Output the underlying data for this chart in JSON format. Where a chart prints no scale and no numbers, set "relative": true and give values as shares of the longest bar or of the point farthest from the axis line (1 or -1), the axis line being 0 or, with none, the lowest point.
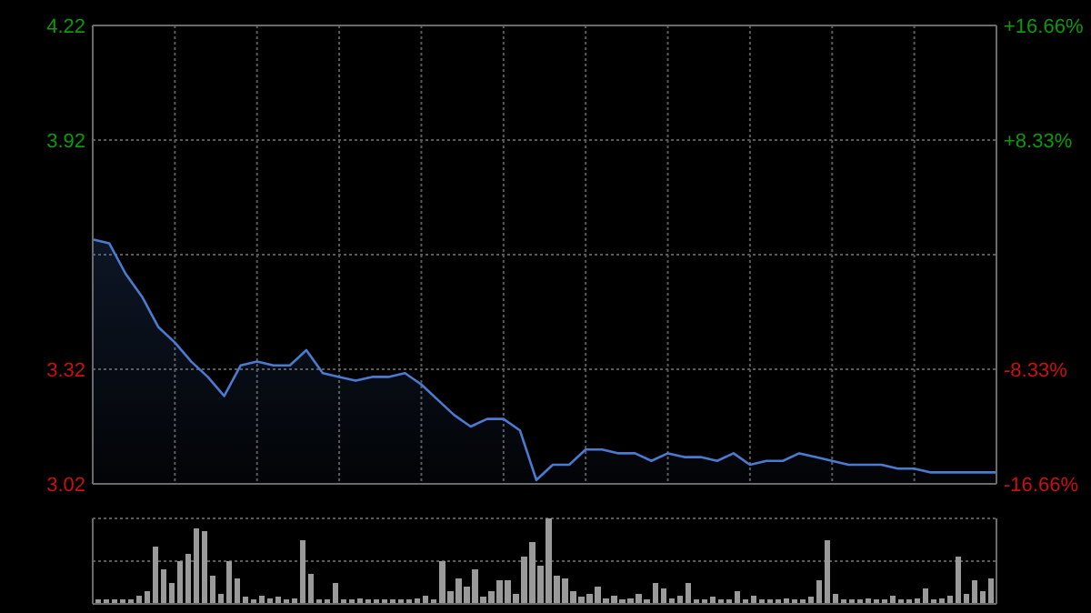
{
  "chart_data": [
    {
      "type": "area",
      "categories": [
        null,
        null,
        null,
        null,
        null,
        null,
        null,
        null,
        null,
        null,
        null,
        null,
        null,
        null,
        null,
        null,
        null,
        null,
        null,
        null,
        null,
        null,
        null,
        null,
        null,
        null,
        null,
        null,
        null,
        null,
        null,
        null,
        null,
        null,
        null,
        null,
        null,
        null,
        null,
        null,
        null,
        null,
        null,
        null,
        null,
        null,
        null,
        null,
        null,
        null,
        null,
        null,
        null,
        null,
        null,
        null
      ],
      "ylim": [
        3.02,
        4.22
      ],
      "yticks": [
        3.02,
        3.32,
        {
          "value": 3.62,
          "label": null
        },
        3.92,
        4.22
      ],
      "y2lim": [
        -16.66,
        16.66
      ],
      "y2ticks": [
        {
          "value": -16.66,
          "label": "-16.66%"
        },
        {
          "value": -8.33,
          "label": "-8.33%"
        },
        {
          "value": 8.33,
          "label": "+8.33%"
        },
        {
          "value": 16.66,
          "label": "+16.66%"
        }
      ],
      "grid": true,
      "series": [
        {
          "color": "#4a7bd0",
          "values": [
            3.66,
            3.65,
            3.57,
            3.51,
            3.43,
            3.39,
            3.34,
            3.3,
            3.25,
            3.33,
            3.34,
            3.33,
            3.33,
            3.37,
            3.31,
            3.3,
            3.29,
            3.3,
            3.3,
            3.31,
            3.28,
            3.24,
            3.2,
            3.17,
            3.19,
            3.19,
            3.16,
            3.03,
            3.07,
            3.07,
            3.11,
            3.11,
            3.1,
            3.1,
            3.08,
            3.1,
            3.09,
            3.09,
            3.08,
            3.1,
            3.07,
            3.08,
            3.08,
            3.1,
            3.09,
            3.08,
            3.07,
            3.07,
            3.07,
            3.06,
            3.06,
            3.05,
            3.05,
            3.05,
            3.05,
            3.05
          ]
        }
      ]
    },
    {
      "type": "bar",
      "relative": true,
      "color": "#9a9a9a",
      "ref_lines": [
        {
          "axis": "y",
          "value": 0.5,
          "color": "#5a5a5a",
          "line_style": "dotted"
        },
        {
          "axis": "y",
          "value": 1,
          "color": "#5a5a5a",
          "line_style": "dotted"
        }
      ],
      "categories": [
        null,
        null,
        null,
        null,
        null,
        null,
        null,
        null,
        null,
        null,
        null,
        null,
        null,
        null,
        null,
        null,
        null,
        null,
        null,
        null,
        null,
        null,
        null,
        null,
        null,
        null,
        null,
        null,
        null,
        null,
        null,
        null,
        null,
        null,
        null,
        null,
        null,
        null,
        null,
        null,
        null,
        null,
        null,
        null,
        null,
        null,
        null,
        null,
        null,
        null,
        null,
        null,
        null,
        null,
        null,
        null,
        null,
        null,
        null,
        null,
        null,
        null,
        null,
        null,
        null,
        null,
        null,
        null,
        null,
        null,
        null,
        null,
        null,
        null,
        null,
        null,
        null,
        null,
        null,
        null,
        null,
        null,
        null,
        null,
        null,
        null,
        null,
        null,
        null,
        null,
        null,
        null,
        null,
        null,
        null,
        null,
        null,
        null,
        null,
        null,
        null,
        null,
        null,
        null,
        null,
        null,
        null,
        null,
        null,
        null
      ],
      "values": [
        0.05,
        0.05,
        0.05,
        0.05,
        0.05,
        0.1,
        0.15,
        0.67,
        0.4,
        0.25,
        0.5,
        0.58,
        0.88,
        0.85,
        0.33,
        0.12,
        0.5,
        0.3,
        0.08,
        0.05,
        0.1,
        0.06,
        0.08,
        0.05,
        0.06,
        0.75,
        0.35,
        0.05,
        0.05,
        0.25,
        0.05,
        0.05,
        0.06,
        0.05,
        0.05,
        0.05,
        0.05,
        0.05,
        0.05,
        0.06,
        0.1,
        0.05,
        0.5,
        0.15,
        0.3,
        0.2,
        0.4,
        0.08,
        0.15,
        0.28,
        0.28,
        0.12,
        0.55,
        0.72,
        0.45,
        1,
        0.33,
        0.3,
        0.15,
        0.08,
        0.12,
        0.2,
        0.06,
        0.1,
        0.05,
        0.06,
        0.12,
        0.05,
        0.25,
        0.18,
        0.06,
        0.1,
        0.25,
        0.05,
        0.05,
        0.08,
        0.05,
        0.05,
        0.15,
        0.05,
        0.1,
        0.05,
        0.05,
        0.05,
        0.06,
        0.05,
        0.05,
        0.08,
        0.28,
        0.75,
        0.12,
        0.05,
        0.05,
        0.05,
        0.06,
        0.05,
        0.05,
        0.1,
        0.05,
        0.05,
        0.06,
        0.18,
        0.05,
        0.06,
        0.1,
        0.55,
        0.12,
        0.28,
        0.15,
        0.3
      ]
    }
  ]
}
